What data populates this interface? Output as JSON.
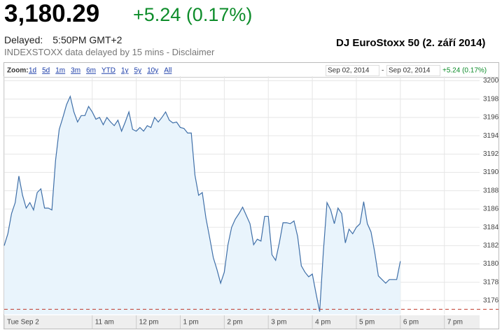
{
  "header": {
    "price": "3,180.29",
    "change": "+5.24 (0.17%)",
    "delayed_label": "Delayed:",
    "delayed_time": "5:50PM GMT+2",
    "note": "INDEXSTOXX data delayed by 15 mins - Disclaimer",
    "annotation": "DJ EuroStoxx 50 (2. září 2014)"
  },
  "toolbar": {
    "zoom_label": "Zoom:",
    "zoom_options": [
      "1d",
      "5d",
      "1m",
      "3m",
      "6m",
      "YTD",
      "1y",
      "5y",
      "10y",
      "All"
    ],
    "range_start": "Sep 02, 2014",
    "range_separator": "-",
    "range_end": "Sep 02, 2014",
    "range_change": "+5.24 (0.17%)"
  },
  "chart_data": {
    "type": "line",
    "color": "#3f6fa8",
    "fill": "#e9f4fc",
    "grid": true,
    "previous_close": 3175.05,
    "previous_close_color": "#c0392b",
    "xlim": [
      540,
      1188
    ],
    "xticks": [
      {
        "value": 540,
        "label": "Tue Sep 2"
      },
      {
        "value": 660,
        "label": "11 am"
      },
      {
        "value": 720,
        "label": "12 pm"
      },
      {
        "value": 780,
        "label": "1 pm"
      },
      {
        "value": 840,
        "label": "2 pm"
      },
      {
        "value": 900,
        "label": "3 pm"
      },
      {
        "value": 960,
        "label": "4 pm"
      },
      {
        "value": 1020,
        "label": "5 pm"
      },
      {
        "value": 1080,
        "label": "6 pm"
      },
      {
        "value": 1140,
        "label": "7 pm"
      }
    ],
    "ylim": [
      3174.5,
      3200.5
    ],
    "yticks": [
      3176,
      3178,
      3180,
      3182,
      3184,
      3186,
      3188,
      3190,
      3192,
      3194,
      3196,
      3198,
      3200
    ],
    "x": [
      540,
      545,
      550,
      555,
      560,
      565,
      570,
      575,
      580,
      585,
      590,
      595,
      600,
      605,
      610,
      615,
      620,
      625,
      630,
      635,
      640,
      645,
      650,
      655,
      660,
      665,
      670,
      675,
      680,
      685,
      690,
      695,
      700,
      705,
      710,
      715,
      720,
      725,
      730,
      735,
      740,
      745,
      750,
      755,
      760,
      765,
      770,
      775,
      780,
      785,
      790,
      795,
      800,
      805,
      810,
      815,
      820,
      825,
      830,
      835,
      840,
      845,
      850,
      855,
      860,
      865,
      870,
      875,
      880,
      885,
      890,
      895,
      900,
      905,
      910,
      915,
      920,
      925,
      930,
      935,
      940,
      945,
      950,
      955,
      960,
      965,
      970,
      975,
      980,
      985,
      990,
      995,
      1000,
      1005,
      1010,
      1015,
      1020,
      1025,
      1030,
      1035,
      1040,
      1045,
      1050,
      1055,
      1060,
      1065,
      1070,
      1075,
      1080
    ],
    "values": [
      3182.0,
      3183.3,
      3185.5,
      3186.7,
      3189.6,
      3187.5,
      3186.1,
      3186.7,
      3185.9,
      3187.8,
      3188.2,
      3186.1,
      3186.1,
      3185.9,
      3191.3,
      3194.7,
      3196.0,
      3197.4,
      3198.3,
      3196.6,
      3195.5,
      3196.2,
      3196.2,
      3197.2,
      3196.6,
      3195.8,
      3196.0,
      3195.2,
      3196.0,
      3195.5,
      3195.1,
      3195.7,
      3194.5,
      3195.5,
      3196.6,
      3194.7,
      3194.5,
      3194.9,
      3194.5,
      3195.1,
      3194.9,
      3196.0,
      3195.5,
      3196.0,
      3196.6,
      3195.7,
      3195.4,
      3195.5,
      3194.9,
      3194.8,
      3194.3,
      3194.3,
      3189.7,
      3187.5,
      3187.8,
      3185.0,
      3182.9,
      3180.7,
      3179.4,
      3177.9,
      3179.1,
      3182.1,
      3184.0,
      3184.9,
      3185.5,
      3186.2,
      3185.3,
      3184.4,
      3182.1,
      3182.7,
      3182.5,
      3185.2,
      3185.2,
      3181.0,
      3180.4,
      3182.3,
      3184.5,
      3184.5,
      3184.4,
      3184.7,
      3183.0,
      3179.8,
      3179.1,
      3178.6,
      3178.9,
      3176.8,
      3174.8,
      3181.3,
      3186.7,
      3185.9,
      3184.4,
      3186.1,
      3185.5,
      3182.3,
      3183.8,
      3183.3,
      3184.0,
      3184.4,
      3186.8,
      3184.4,
      3183.5,
      3181.3,
      3178.7,
      3178.3,
      3177.9,
      3178.3,
      3178.3,
      3178.3,
      3180.3
    ]
  }
}
